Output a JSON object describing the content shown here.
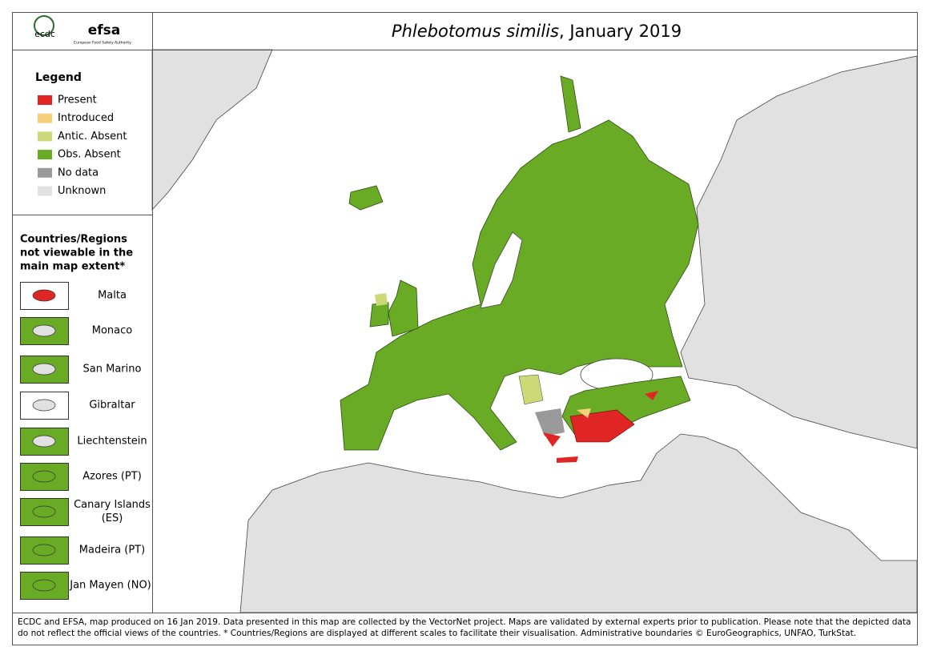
{
  "header": {
    "logos": [
      "ecdc",
      "efsa",
      "European Food Safety Authority"
    ],
    "title_italic": "Phlebotomus similis",
    "title_rest": ", January 2019"
  },
  "legend": {
    "title": "Legend",
    "items": [
      {
        "label": "Present",
        "color": "#e02525"
      },
      {
        "label": "Introduced",
        "color": "#f6cf7b"
      },
      {
        "label": "Antic. Absent",
        "color": "#cdd977"
      },
      {
        "label": "Obs. Absent",
        "color": "#6aab26"
      },
      {
        "label": "No data",
        "color": "#9a9a9a"
      },
      {
        "label": "Unknown",
        "color": "#e1e1e1"
      }
    ]
  },
  "regions": {
    "title_lines": [
      "Countries/Regions",
      "not viewable in the",
      "main map extent*"
    ],
    "items": [
      {
        "label": [
          "Malta"
        ],
        "color": "#e02525"
      },
      {
        "label": [
          "Monaco"
        ],
        "color": "#6aab26"
      },
      {
        "label": [
          "San Marino"
        ],
        "color": "#6aab26"
      },
      {
        "label": [
          "Gibraltar"
        ],
        "color": "#e1e1e1"
      },
      {
        "label": [
          "Liechtenstein"
        ],
        "color": "#6aab26"
      },
      {
        "label": [
          "Azores (PT)"
        ],
        "color": "#6aab26"
      },
      {
        "label": [
          "Canary Islands",
          "(ES)"
        ],
        "color": "#6aab26"
      },
      {
        "label": [
          "Madeira (PT)"
        ],
        "color": "#6aab26"
      },
      {
        "label": [
          "Jan Mayen (NO)"
        ],
        "color": "#6aab26"
      }
    ]
  },
  "footer": {
    "lines": [
      "ECDC and EFSA, map produced on 16 Jan 2019. Data presented in this map are collected by the VectorNet project. Maps are validated by external experts prior to publication. Please note that the depicted data",
      "do not reflect the official views of the countries. * Countries/Regions are displayed at different scales to facilitate their visualisation. Administrative boundaries © EuroGeographics, UNFAO, TurkStat."
    ]
  }
}
